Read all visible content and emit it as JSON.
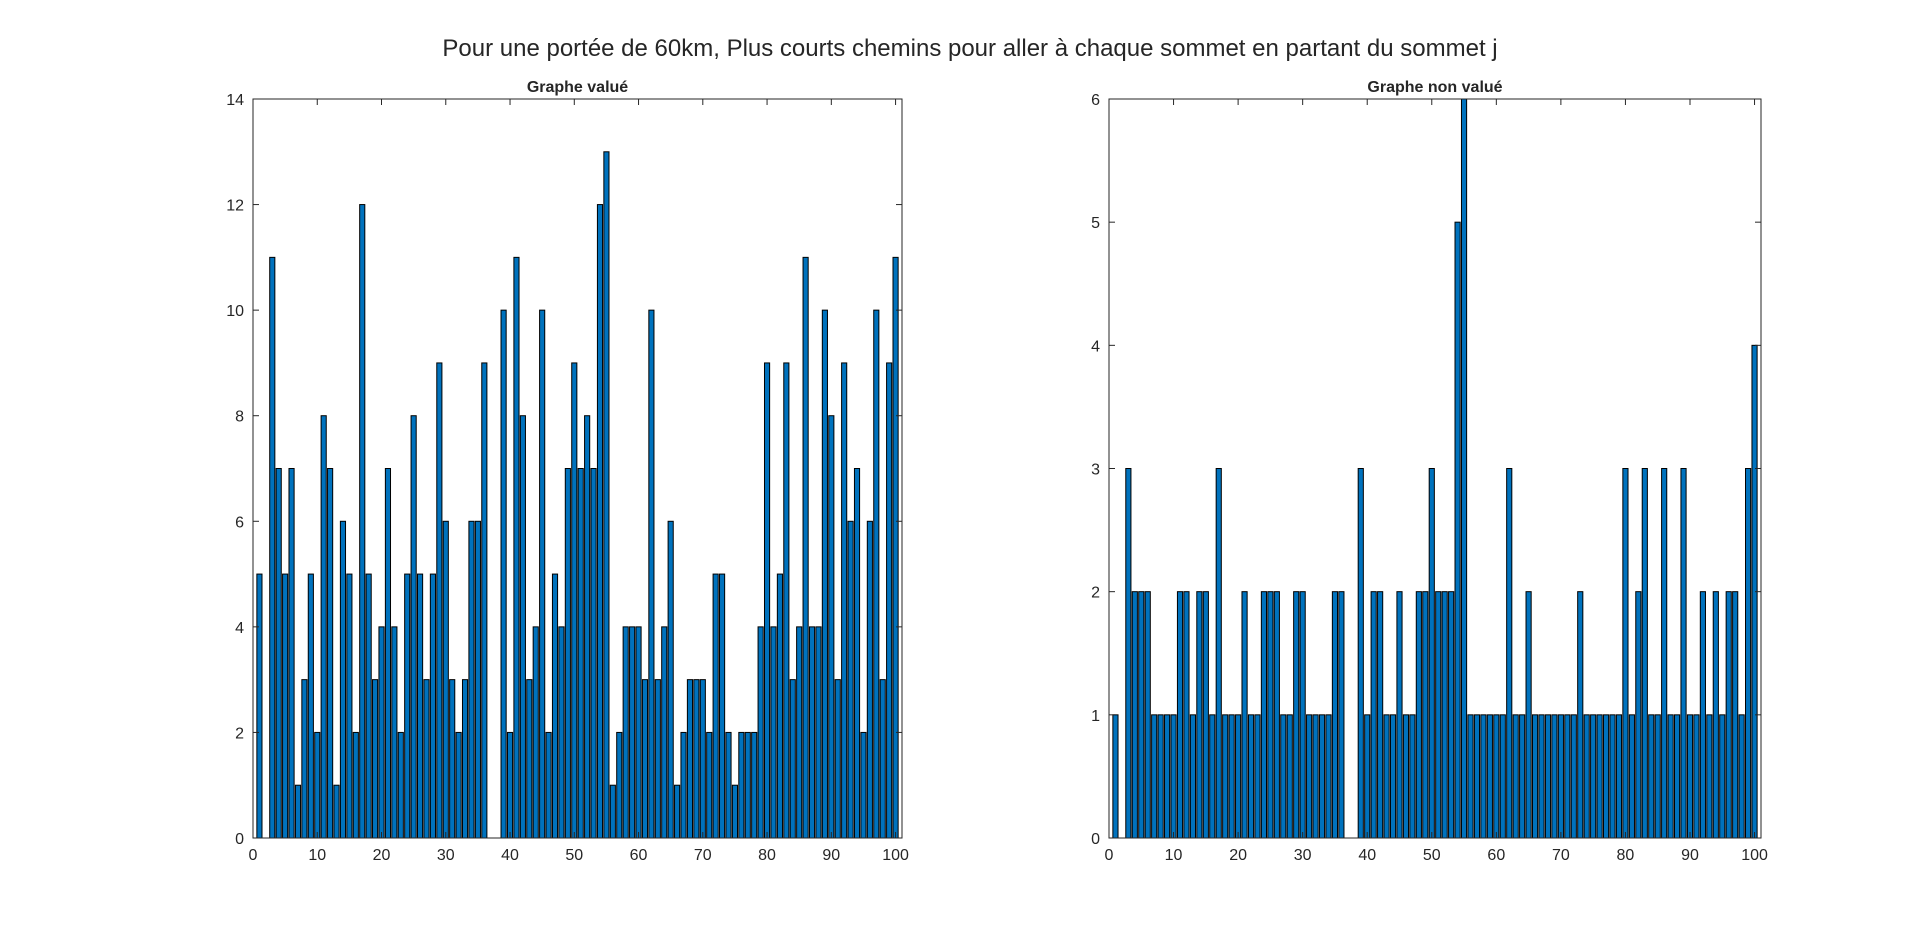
{
  "figure": {
    "suptitle": "Pour une portée de 60km, Plus courts chemins pour aller à chaque sommet en partant du sommet j",
    "bar_color": "#0072BD",
    "edge_color": "#000000"
  },
  "chart_data": [
    {
      "type": "bar",
      "title": "Graphe valué",
      "xlabel": "",
      "ylabel": "",
      "xlim": [
        0,
        101
      ],
      "ylim": [
        0,
        14
      ],
      "xticks": [
        0,
        10,
        20,
        30,
        40,
        50,
        60,
        70,
        80,
        90,
        100
      ],
      "yticks": [
        0,
        2,
        4,
        6,
        8,
        10,
        12,
        14
      ],
      "grid": false,
      "x_start": 1,
      "values": [
        5,
        0,
        11,
        7,
        5,
        7,
        1,
        3,
        5,
        2,
        8,
        7,
        1,
        6,
        5,
        2,
        12,
        5,
        3,
        4,
        7,
        4,
        2,
        5,
        8,
        5,
        3,
        5,
        9,
        6,
        3,
        2,
        3,
        6,
        6,
        9,
        0,
        0,
        10,
        2,
        11,
        8,
        3,
        4,
        10,
        2,
        5,
        4,
        7,
        9,
        7,
        8,
        7,
        12,
        13,
        1,
        2,
        4,
        4,
        4,
        3,
        10,
        3,
        4,
        6,
        1,
        2,
        3,
        3,
        3,
        2,
        5,
        5,
        2,
        1,
        2,
        2,
        2,
        4,
        9,
        4,
        5,
        9,
        3,
        4,
        11,
        4,
        4,
        10,
        8,
        3,
        9,
        6,
        7,
        2,
        6,
        10,
        3,
        9,
        11
      ]
    },
    {
      "type": "bar",
      "title": "Graphe non valué",
      "xlabel": "",
      "ylabel": "",
      "xlim": [
        0,
        101
      ],
      "ylim": [
        0,
        6
      ],
      "xticks": [
        0,
        10,
        20,
        30,
        40,
        50,
        60,
        70,
        80,
        90,
        100
      ],
      "yticks": [
        0,
        1,
        2,
        3,
        4,
        5,
        6
      ],
      "grid": false,
      "x_start": 1,
      "values": [
        1,
        0,
        3,
        2,
        2,
        2,
        1,
        1,
        1,
        1,
        2,
        2,
        1,
        2,
        2,
        1,
        3,
        1,
        1,
        1,
        2,
        1,
        1,
        2,
        2,
        2,
        1,
        1,
        2,
        2,
        1,
        1,
        1,
        1,
        2,
        2,
        0,
        0,
        3,
        1,
        2,
        2,
        1,
        1,
        2,
        1,
        1,
        2,
        2,
        3,
        2,
        2,
        2,
        5,
        6,
        1,
        1,
        1,
        1,
        1,
        1,
        3,
        1,
        1,
        2,
        1,
        1,
        1,
        1,
        1,
        1,
        1,
        2,
        1,
        1,
        1,
        1,
        1,
        1,
        3,
        1,
        2,
        3,
        1,
        1,
        3,
        1,
        1,
        3,
        1,
        1,
        2,
        1,
        2,
        1,
        2,
        2,
        1,
        3,
        4
      ]
    }
  ]
}
